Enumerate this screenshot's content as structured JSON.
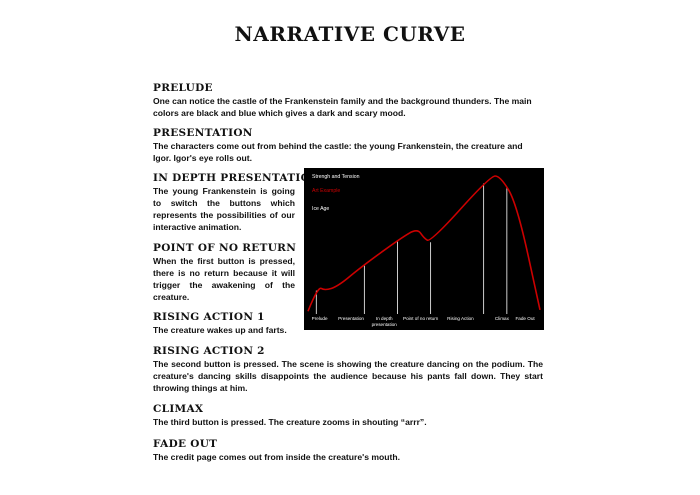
{
  "title": "NARRATIVE CURVE",
  "sections": [
    {
      "heading": "PRELUDE",
      "text": "One can notice the castle of the Frankenstein family and the background thunders. The main colors are black and blue which gives a dark and scary mood."
    },
    {
      "heading": "PRESENTATION",
      "text": "The characters come out from behind the castle: the young Frankenstein, the creature and Igor. Igor's eye rolls out."
    },
    {
      "heading": "IN DEPTH PRESENTATION",
      "text": " The young Frankenstein is going to switch the buttons which represents the possibilities of our interactive animation."
    },
    {
      "heading": "POINT OF NO RETURN",
      "text": "When the first button is pressed, there is no return because it will trigger the awakening of the creature."
    },
    {
      "heading": "RISING ACTION 1",
      "text": "The creature wakes up and farts."
    },
    {
      "heading": "RISING ACTION 2",
      "text": "The second button is pressed. The scene is showing the creature dancing on the podium. The creature's dancing skills disappoints the audience because his pants fall down. They start throwing things at him."
    },
    {
      "heading": "CLIMAX",
      "text": "The third button is pressed. The creature zooms in shouting “arrr”."
    },
    {
      "heading": "FADE OUT",
      "text": "The credit page comes out from inside the creature's mouth."
    }
  ],
  "chart_data": {
    "type": "line",
    "legend": [
      "Strengh and Tension",
      "Art Example",
      "Ice Age"
    ],
    "categories": [
      "Prelude",
      "Presentation",
      "In depth presentation",
      "Point of no return",
      "Rising Action",
      "Climax",
      "Fade Out"
    ],
    "series": [
      {
        "name": "Ice Age",
        "x": [
          0,
          0.3,
          0.5,
          0.9,
          1.6,
          2.8,
          3.3,
          3.5,
          3.7,
          5.5,
          5.8,
          6.3,
          7.0
        ],
        "y": [
          0.02,
          0.2,
          0.17,
          0.2,
          0.34,
          0.55,
          0.62,
          0.55,
          0.52,
          1.0,
          1.0,
          0.8,
          0.03
        ]
      }
    ],
    "markers_x": [
      0.25,
      1.7,
      2.7,
      3.7,
      5.3,
      6.0
    ],
    "background": "#000000",
    "line_color": "#cc0000",
    "grid": false
  }
}
